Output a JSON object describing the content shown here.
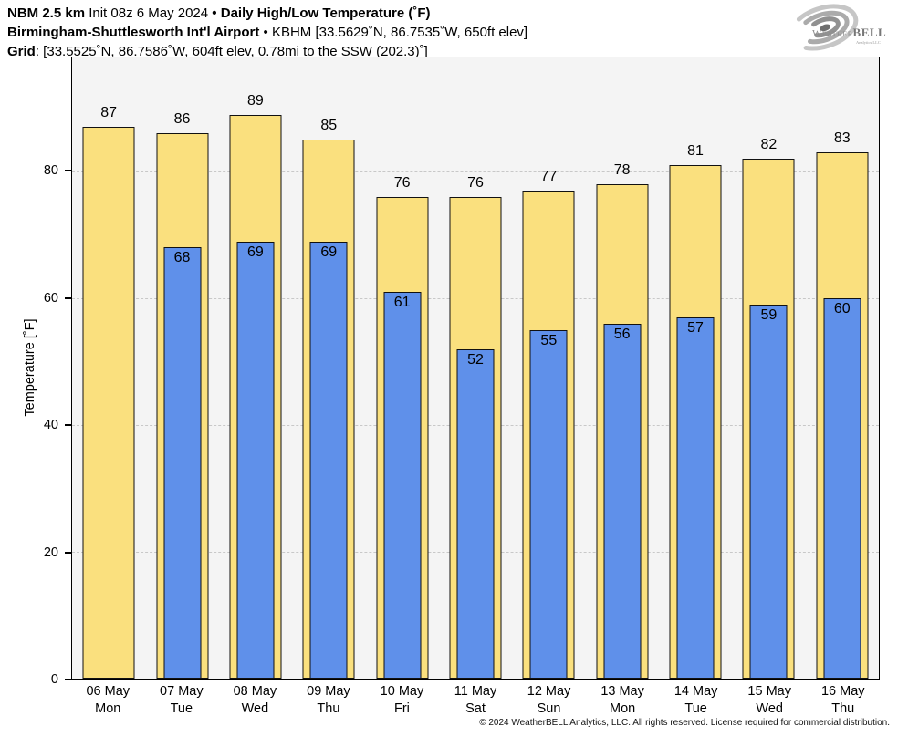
{
  "header": {
    "line1": {
      "model": "NBM 2.5 km",
      "init": "Init 08z 6 May 2024",
      "sep": "•",
      "title": "Daily High/Low Temperature (˚F)"
    },
    "line2": {
      "station": "Birmingham-Shuttlesworth Intʹl Airport",
      "sep": "•",
      "details": "KBHM [33.5629˚N, 86.7535˚W, 650ft elev]"
    },
    "line3": {
      "label": "Grid",
      "details": ": [33.5525˚N, 86.7586˚W, 604ft elev, 0.78mi to the SSW (202.3)˚]"
    }
  },
  "logo": {
    "weather": "Weather",
    "bell": "BELL",
    "subtext": "Analytics LLC"
  },
  "footer": {
    "copyright": "© 2024 WeatherBELL Analytics, LLC. All rights reserved. License required for commercial distribution."
  },
  "chart_data": {
    "type": "bar",
    "title": "NBM 2.5 km Daily High/Low Temperature (°F) — Birmingham-Shuttlesworth Int'l Airport (KBHM)",
    "ylabel": "Temperature [˚F]",
    "ylim": [
      0,
      98
    ],
    "yticks": [
      0,
      20,
      40,
      60,
      80
    ],
    "grid": true,
    "plot_bg_color": "#F4F4F4",
    "grid_color": "#C8C8C8",
    "categories": [
      {
        "date": "06 May",
        "day": "Mon"
      },
      {
        "date": "07 May",
        "day": "Tue"
      },
      {
        "date": "08 May",
        "day": "Wed"
      },
      {
        "date": "09 May",
        "day": "Thu"
      },
      {
        "date": "10 May",
        "day": "Fri"
      },
      {
        "date": "11 May",
        "day": "Sat"
      },
      {
        "date": "12 May",
        "day": "Sun"
      },
      {
        "date": "13 May",
        "day": "Mon"
      },
      {
        "date": "14 May",
        "day": "Tue"
      },
      {
        "date": "15 May",
        "day": "Wed"
      },
      {
        "date": "16 May",
        "day": "Thu"
      }
    ],
    "series": [
      {
        "name": "High",
        "color": "#FAE07E",
        "values": [
          87,
          86,
          89,
          85,
          76,
          76,
          77,
          78,
          81,
          82,
          83
        ]
      },
      {
        "name": "Low",
        "color": "#5F90EA",
        "values": [
          null,
          68,
          69,
          69,
          61,
          52,
          55,
          56,
          57,
          59,
          60
        ]
      }
    ]
  }
}
